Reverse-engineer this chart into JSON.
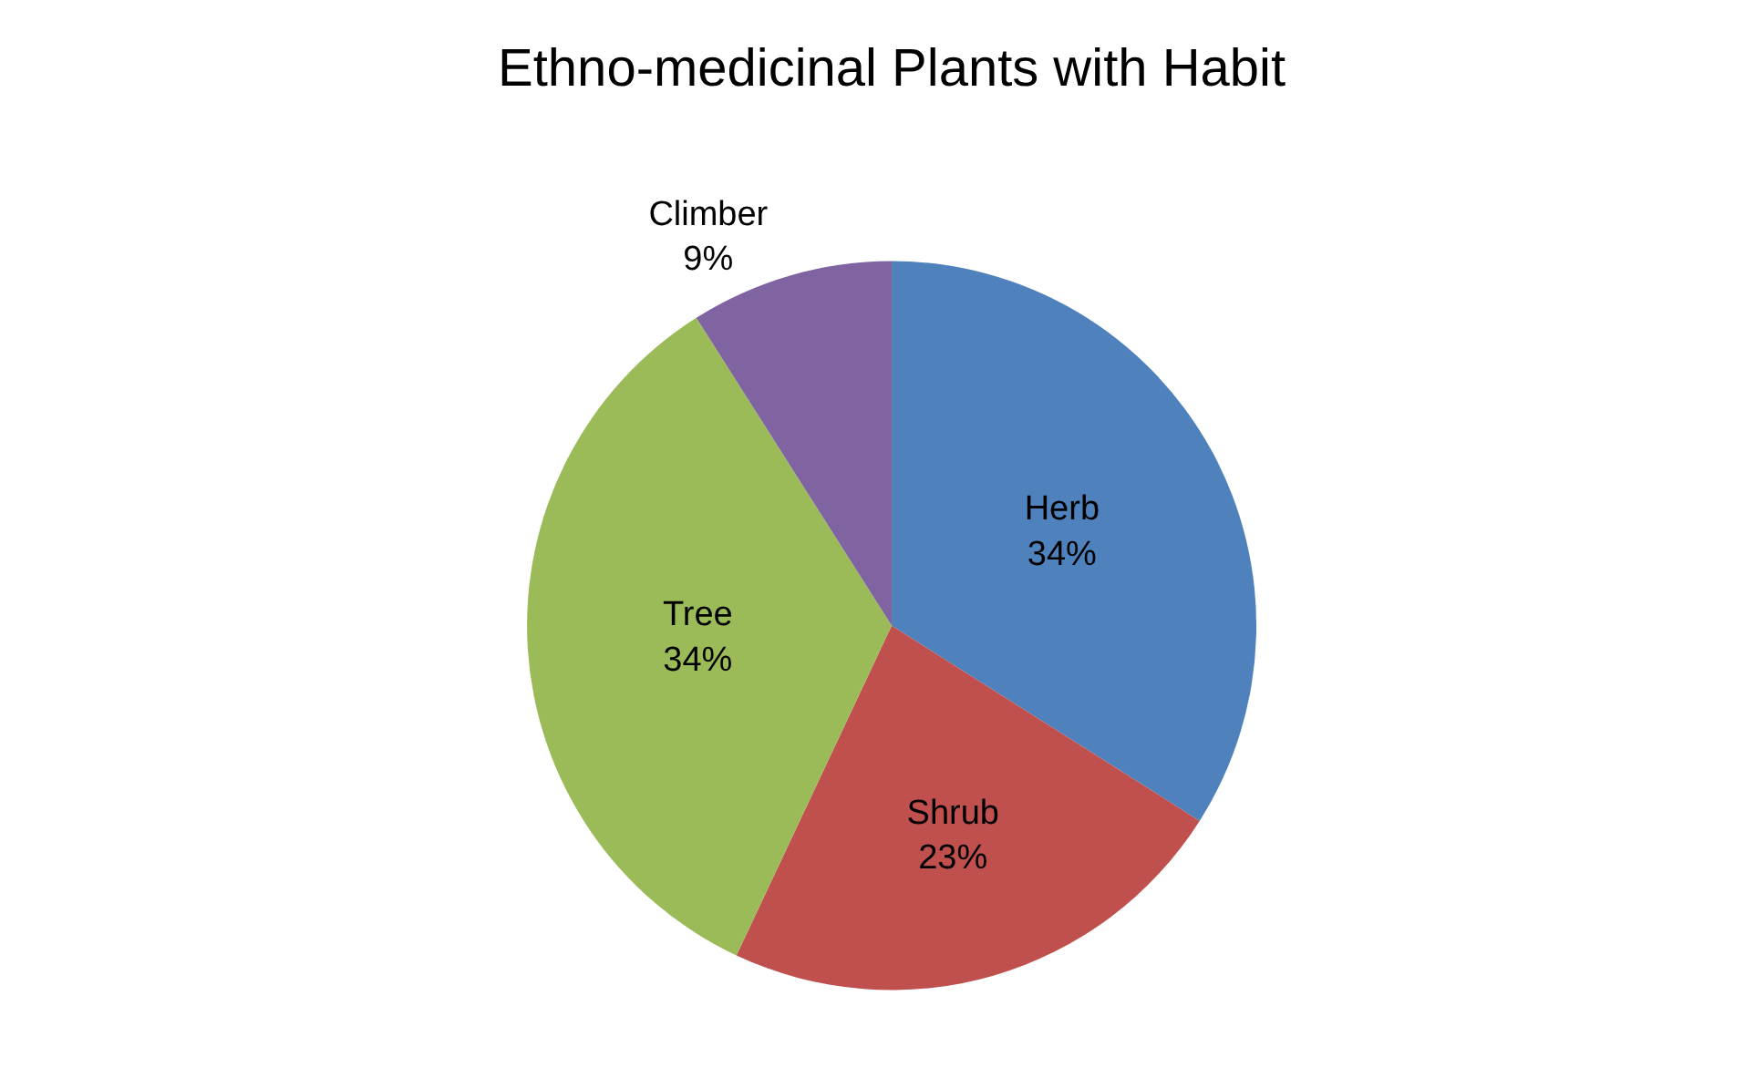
{
  "chart_data": {
    "type": "pie",
    "title": "Ethno-medicinal Plants with Habit",
    "categories": [
      "Herb",
      "Shrub",
      "Tree",
      "Climber"
    ],
    "values": [
      34,
      23,
      34,
      9
    ],
    "value_labels": [
      "34%",
      "23%",
      "34%",
      "9%"
    ],
    "colors": [
      "#4f81bd",
      "#c0504d",
      "#9bbb59",
      "#8064a2"
    ],
    "legend": false
  }
}
